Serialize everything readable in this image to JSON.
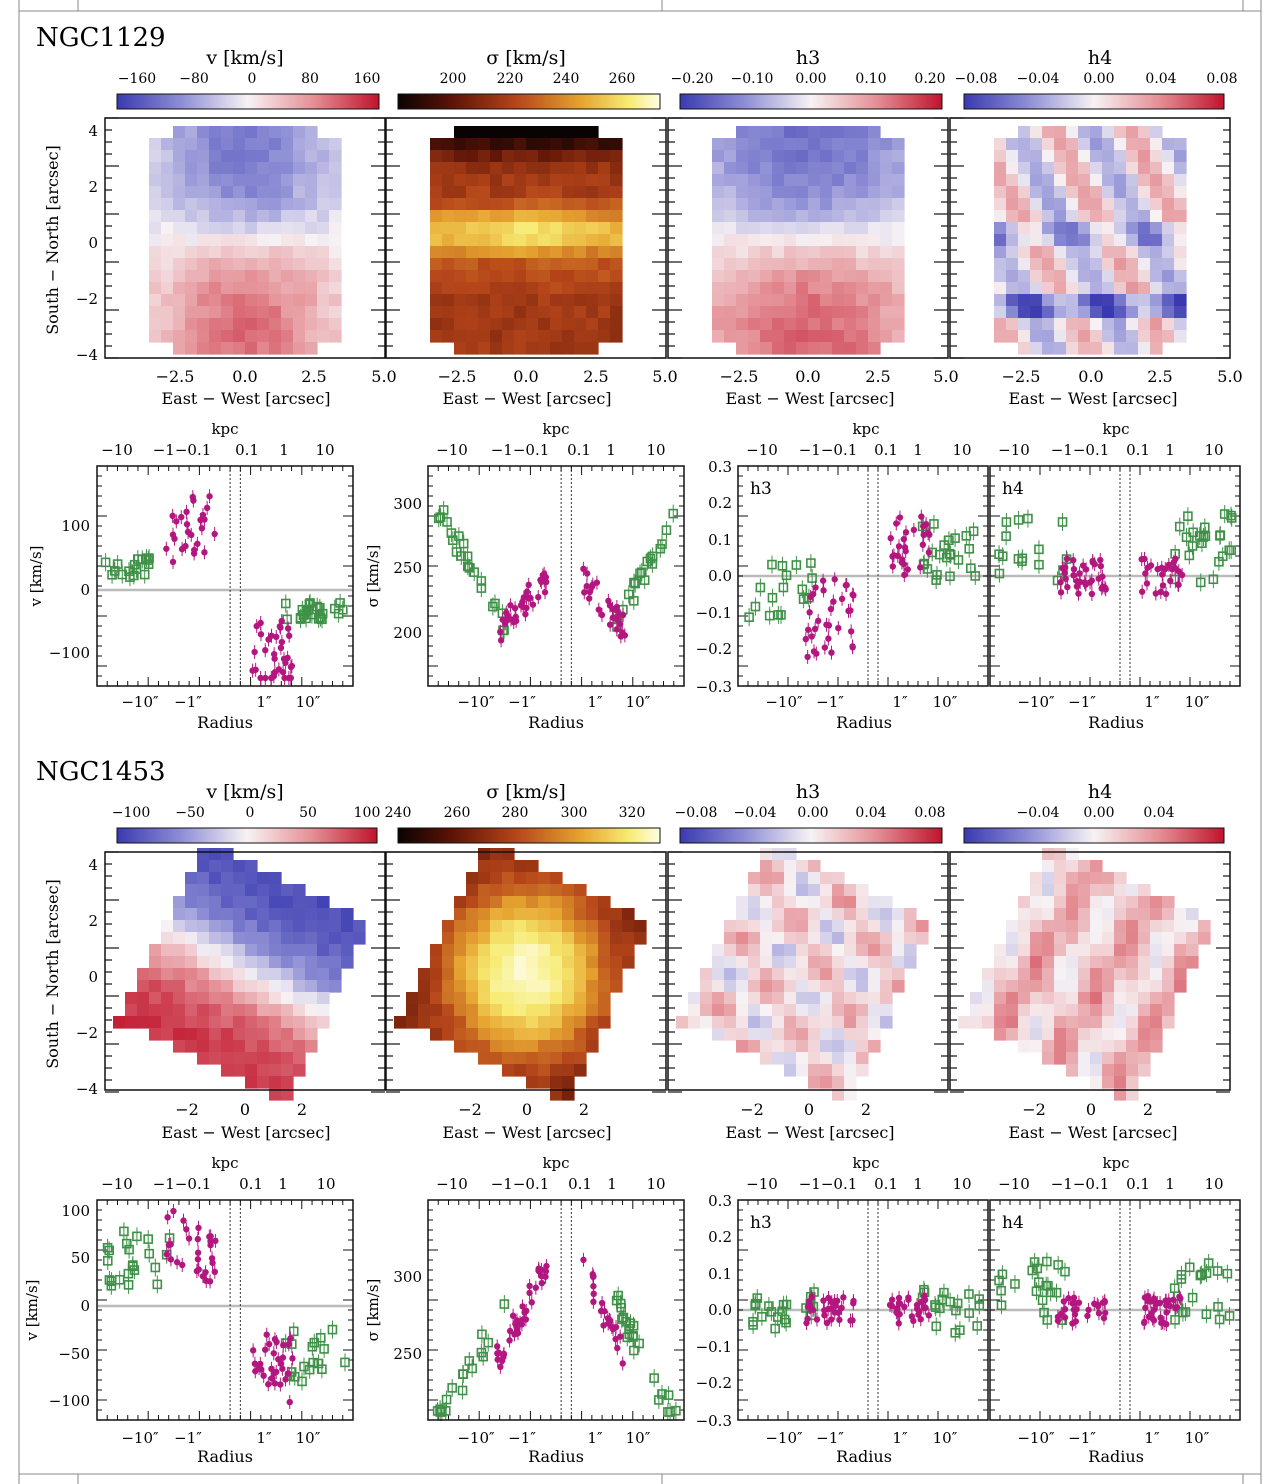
{
  "galaxies": [
    {
      "name": "NGC1129",
      "maps": [
        {
          "label": "v [km/s]",
          "cmap": "div",
          "ticks": [
            "−160",
            "−80",
            "0",
            "80",
            "160"
          ],
          "pattern": "vel",
          "shape": "rect",
          "xticks": [
            "−2.5",
            "0.0",
            "2.5",
            "5.0"
          ],
          "xlabel": "East − West [arcsec]"
        },
        {
          "label": "σ [km/s]",
          "cmap": "heat",
          "ticks": [
            "200",
            "220",
            "240",
            "260"
          ],
          "pattern": "sig1",
          "shape": "rect",
          "xticks": [
            "−2.5",
            "0.0",
            "2.5",
            "5.0"
          ],
          "xlabel": "East − West [arcsec]"
        },
        {
          "label": "h3",
          "cmap": "div",
          "ticks": [
            "−0.20",
            "−0.10",
            "0.00",
            "0.10",
            "0.20"
          ],
          "pattern": "h3a",
          "shape": "rect",
          "xticks": [
            "−2.5",
            "0.0",
            "2.5",
            "5.0"
          ],
          "xlabel": "East − West [arcsec]"
        },
        {
          "label": "h4",
          "cmap": "div",
          "ticks": [
            "−0.08",
            "−0.04",
            "0.00",
            "0.04",
            "0.08"
          ],
          "pattern": "h4a",
          "shape": "rect",
          "xticks": [
            "−2.5",
            "0.0",
            "2.5",
            "5.0"
          ],
          "xlabel": "East − West [arcsec]"
        }
      ],
      "map_ylabel": "South − North [arcsec]",
      "map_yticks": [
        "4",
        "2",
        "0",
        "−2",
        "−4"
      ],
      "profiles": [
        {
          "ylabel": "v [km/s]",
          "yticks": [
            "100",
            "0",
            "−100"
          ],
          "inset": "",
          "top_label": "kpc",
          "top_ticks": [
            "−10",
            "−1−0.1",
            "0.1",
            "1",
            "10"
          ],
          "bottom_ticks": [
            "−10″",
            "−1″",
            "1″",
            "10″"
          ],
          "xlabel": "Radius",
          "kind": "v1"
        },
        {
          "ylabel": "σ [km/s]",
          "yticks": [
            "300",
            "250",
            "200"
          ],
          "inset": "",
          "top_label": "kpc",
          "top_ticks": [
            "−10",
            "−1−0.1",
            "0.1",
            "1",
            "10"
          ],
          "bottom_ticks": [
            "−10″",
            "−1″",
            "1″",
            "10″"
          ],
          "xlabel": "Radius",
          "kind": "s1"
        },
        {
          "ylabel": "",
          "yticks": [
            "0.3",
            "0.2",
            "0.1",
            "0.0",
            "−0.1",
            "−0.2",
            "−0.3"
          ],
          "inset": "h3",
          "top_label": "kpc",
          "top_ticks": [
            "−10",
            "−1−0.1",
            "0.1",
            "1",
            "10"
          ],
          "bottom_ticks": [
            "−10″",
            "−1″",
            "1″",
            "10″"
          ],
          "xlabel": "Radius",
          "kind": "h3a"
        },
        {
          "ylabel": "",
          "yticks": [],
          "inset": "h4",
          "top_label": "kpc",
          "top_ticks": [
            "−10",
            "−1−0.1",
            "0.1",
            "1",
            "10"
          ],
          "bottom_ticks": [
            "−10″",
            "−1″",
            "1″",
            "10″"
          ],
          "xlabel": "Radius",
          "kind": "h4a"
        }
      ]
    },
    {
      "name": "NGC1453",
      "maps": [
        {
          "label": "v [km/s]",
          "cmap": "div",
          "ticks": [
            "−100",
            "−50",
            "0",
            "50",
            "100"
          ],
          "pattern": "vel2",
          "shape": "tilt",
          "xticks": [
            "−2",
            "0",
            "2"
          ],
          "xlabel": "East − West [arcsec]"
        },
        {
          "label": "σ [km/s]",
          "cmap": "heat",
          "ticks": [
            "240",
            "260",
            "280",
            "300",
            "320"
          ],
          "pattern": "sig2",
          "shape": "tilt",
          "xticks": [
            "−2",
            "0",
            "2"
          ],
          "xlabel": "East − West [arcsec]"
        },
        {
          "label": "h3",
          "cmap": "div",
          "ticks": [
            "−0.08",
            "−0.04",
            "0.00",
            "0.04",
            "0.08"
          ],
          "pattern": "h3b",
          "shape": "tilt",
          "xticks": [
            "−2",
            "0",
            "2"
          ],
          "xlabel": "East − West [arcsec]"
        },
        {
          "label": "h4",
          "cmap": "div",
          "ticks": [
            "−0.04",
            "0.00",
            "0.04"
          ],
          "pattern": "h4b",
          "shape": "tilt",
          "xticks": [
            "−2",
            "0",
            "2"
          ],
          "xlabel": "East − West [arcsec]"
        }
      ],
      "map_ylabel": "South − North [arcsec]",
      "map_yticks": [
        "4",
        "2",
        "0",
        "−2",
        "−4"
      ],
      "profiles": [
        {
          "ylabel": "v [km/s]",
          "yticks": [
            "100",
            "50",
            "0",
            "−50",
            "−100"
          ],
          "inset": "",
          "top_label": "kpc",
          "top_ticks": [
            "−10",
            "−1−0.1",
            "0.1",
            "1",
            "10"
          ],
          "bottom_ticks": [
            "−10″",
            "−1″",
            "1″",
            "10″"
          ],
          "xlabel": "Radius",
          "kind": "v2"
        },
        {
          "ylabel": "σ [km/s]",
          "yticks": [
            "300",
            "250"
          ],
          "inset": "",
          "top_label": "kpc",
          "top_ticks": [
            "−10",
            "−1−0.1",
            "0.1",
            "1",
            "10"
          ],
          "bottom_ticks": [
            "−10″",
            "−1″",
            "1″",
            "10″"
          ],
          "xlabel": "Radius",
          "kind": "s2"
        },
        {
          "ylabel": "",
          "yticks": [
            "0.3",
            "0.2",
            "0.1",
            "0.0",
            "−0.1",
            "−0.2",
            "−0.3"
          ],
          "inset": "h3",
          "top_label": "kpc",
          "top_ticks": [
            "−10",
            "−1−0.1",
            "0.1",
            "1",
            "10"
          ],
          "bottom_ticks": [
            "−10″",
            "−1″",
            "1″",
            "10″"
          ],
          "xlabel": "Radius",
          "kind": "h3b"
        },
        {
          "ylabel": "",
          "yticks": [],
          "inset": "h4",
          "top_label": "kpc",
          "top_ticks": [
            "−10",
            "−1−0.1",
            "0.1",
            "1",
            "10"
          ],
          "bottom_ticks": [
            "−10″",
            "−1″",
            "1″",
            "10″"
          ],
          "xlabel": "Radius",
          "kind": "h4b"
        }
      ]
    }
  ],
  "colors": {
    "diverging": [
      "#3a3ab0",
      "#8f8fd6",
      "#f7f2f4",
      "#e48f95",
      "#c0142c"
    ],
    "heat": [
      "#0a0303",
      "#5a1206",
      "#b5451a",
      "#e6a430",
      "#f7eb72",
      "#fdfde4"
    ],
    "ifu_points": "#b3177f",
    "longslit_points": "#3e9146",
    "zero_line": "#bbbbbb"
  }
}
